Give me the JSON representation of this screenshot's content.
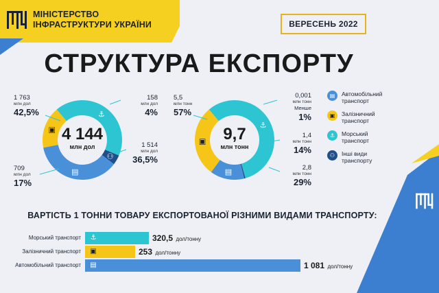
{
  "header": {
    "org_line1": "МІНІСТЕРСТВО",
    "org_line2": "ІНФРАСТРУКТУРИ УКРАЇНИ",
    "date": "ВЕРЕСЕНЬ 2022"
  },
  "title": "СТРУКТУРА ЕКСПОРТУ",
  "colors": {
    "road": "#4a90d9",
    "rail": "#f5c518",
    "sea": "#2ec5d3",
    "other": "#1f4e8c",
    "accent_yellow": "#f5d020",
    "accent_blue": "#3c7fd0"
  },
  "chart_data": [
    {
      "type": "pie",
      "donut": true,
      "center_value": "4 144",
      "center_unit": "млн дол",
      "series": [
        {
          "key": "sea",
          "value": "1 763",
          "unit": "млн дол",
          "pct": "42,5%",
          "share": 42.5
        },
        {
          "key": "other",
          "value": "158",
          "unit": "млн дол",
          "pct": "4%",
          "share": 4
        },
        {
          "key": "road",
          "value": "1 514",
          "unit": "млн дол",
          "pct": "36,5%",
          "share": 36.5
        },
        {
          "key": "rail",
          "value": "709",
          "unit": "млн дол",
          "pct": "17%",
          "share": 17
        }
      ]
    },
    {
      "type": "pie",
      "donut": true,
      "center_value": "9,7",
      "center_unit": "млн тонн",
      "series": [
        {
          "key": "sea",
          "value": "5,5",
          "unit": "млн тонн",
          "pct": "57%",
          "share": 57
        },
        {
          "key": "other",
          "value": "0,001",
          "unit": "млн тонн",
          "pct_prefix": "Менше",
          "pct": "1%",
          "share": 0.5
        },
        {
          "key": "road",
          "value": "1,4",
          "unit": "млн тонн",
          "pct": "14%",
          "share": 14
        },
        {
          "key": "rail",
          "value": "2,8",
          "unit": "млн тонн",
          "pct": "29%",
          "share": 29
        }
      ]
    },
    {
      "type": "bar",
      "orientation": "horizontal",
      "title": "ВАРТІСТЬ 1 ТОННИ ТОВАРУ ЕКСПОРТОВАНОЇ РІЗНИМИ ВИДАМИ ТРАНСПОРТУ:",
      "unit": "дол/тонну",
      "categories": [
        "Морський транспорт",
        "Залізничний транспорт",
        "Автомобільний транспорт"
      ],
      "keys": [
        "sea",
        "rail",
        "road"
      ],
      "values": [
        320.5,
        253,
        1081
      ],
      "value_labels": [
        "320,5",
        "253",
        "1 081"
      ],
      "xlim": [
        0,
        1081
      ]
    }
  ],
  "legend": [
    {
      "key": "road",
      "line1": "Автомобільний",
      "line2": "транспорт",
      "icon": "truck-icon"
    },
    {
      "key": "rail",
      "line1": "Залізничний",
      "line2": "транспорт",
      "icon": "train-icon"
    },
    {
      "key": "sea",
      "line1": "Морський",
      "line2": "транспорт",
      "icon": "anchor-icon"
    },
    {
      "key": "other",
      "line1": "Інші види",
      "line2": "транспорту",
      "icon": "pipeline-icon"
    }
  ]
}
